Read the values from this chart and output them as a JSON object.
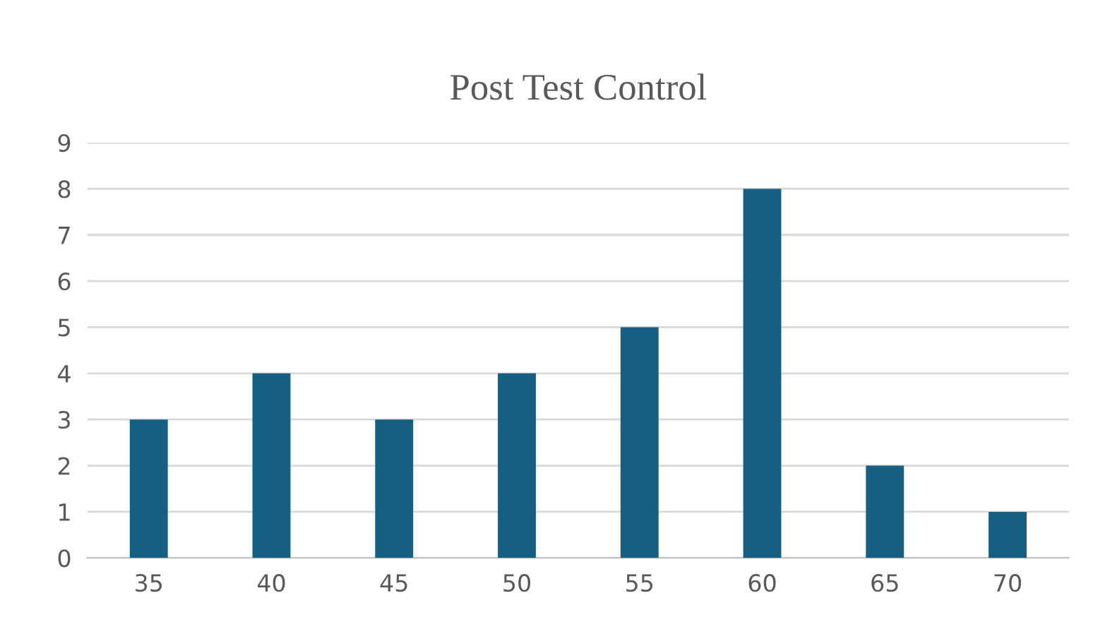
{
  "chart_data": {
    "type": "bar",
    "title": "Post Test Control",
    "categories": [
      "35",
      "40",
      "45",
      "50",
      "55",
      "60",
      "65",
      "70"
    ],
    "values": [
      3,
      4,
      3,
      4,
      5,
      8,
      2,
      1
    ],
    "color": "#156082",
    "ylim": [
      0,
      9
    ],
    "yticks": [
      0,
      1,
      2,
      3,
      4,
      5,
      6,
      7,
      8,
      9
    ],
    "grid": "y"
  }
}
